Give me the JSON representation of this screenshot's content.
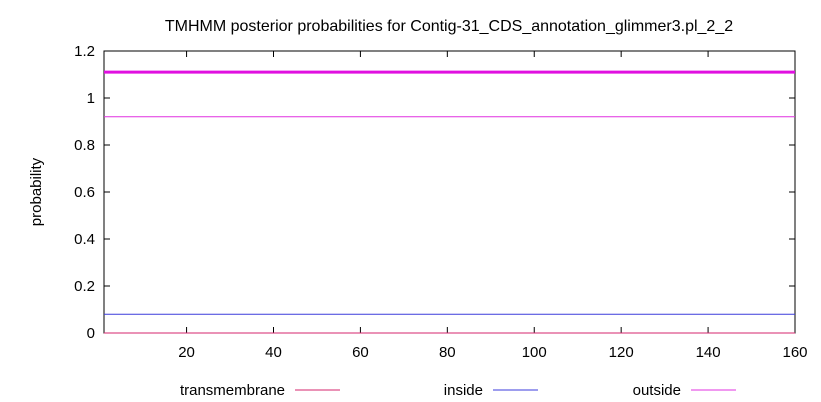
{
  "chart_data": {
    "type": "line",
    "title": "TMHMM posterior probabilities for Contig-31_CDS_annotation_glimmer3.pl_2_2",
    "xlabel": "",
    "ylabel": "probability",
    "xlim": [
      1,
      160
    ],
    "ylim": [
      0,
      1.2
    ],
    "x_ticks": [
      20,
      40,
      60,
      80,
      100,
      120,
      140,
      160
    ],
    "y_ticks": [
      "0",
      "0.2",
      "0.4",
      "0.6",
      "0.8",
      "1",
      "1.2"
    ],
    "grid": false,
    "legend_position": "bottom",
    "series": [
      {
        "name": "transmembrane",
        "color": "#d6266e",
        "x": [
          1,
          160
        ],
        "y": [
          0,
          0
        ]
      },
      {
        "name": "inside",
        "color": "#3b3bdc",
        "x": [
          1,
          160
        ],
        "y": [
          0.08,
          0.08
        ]
      },
      {
        "name": "outside",
        "color": "#e030e0",
        "x": [
          1,
          160
        ],
        "y": [
          0.92,
          0.92
        ]
      }
    ],
    "annotations": [
      {
        "type": "hline",
        "y": 1.11,
        "color": "#e010e0"
      }
    ]
  }
}
